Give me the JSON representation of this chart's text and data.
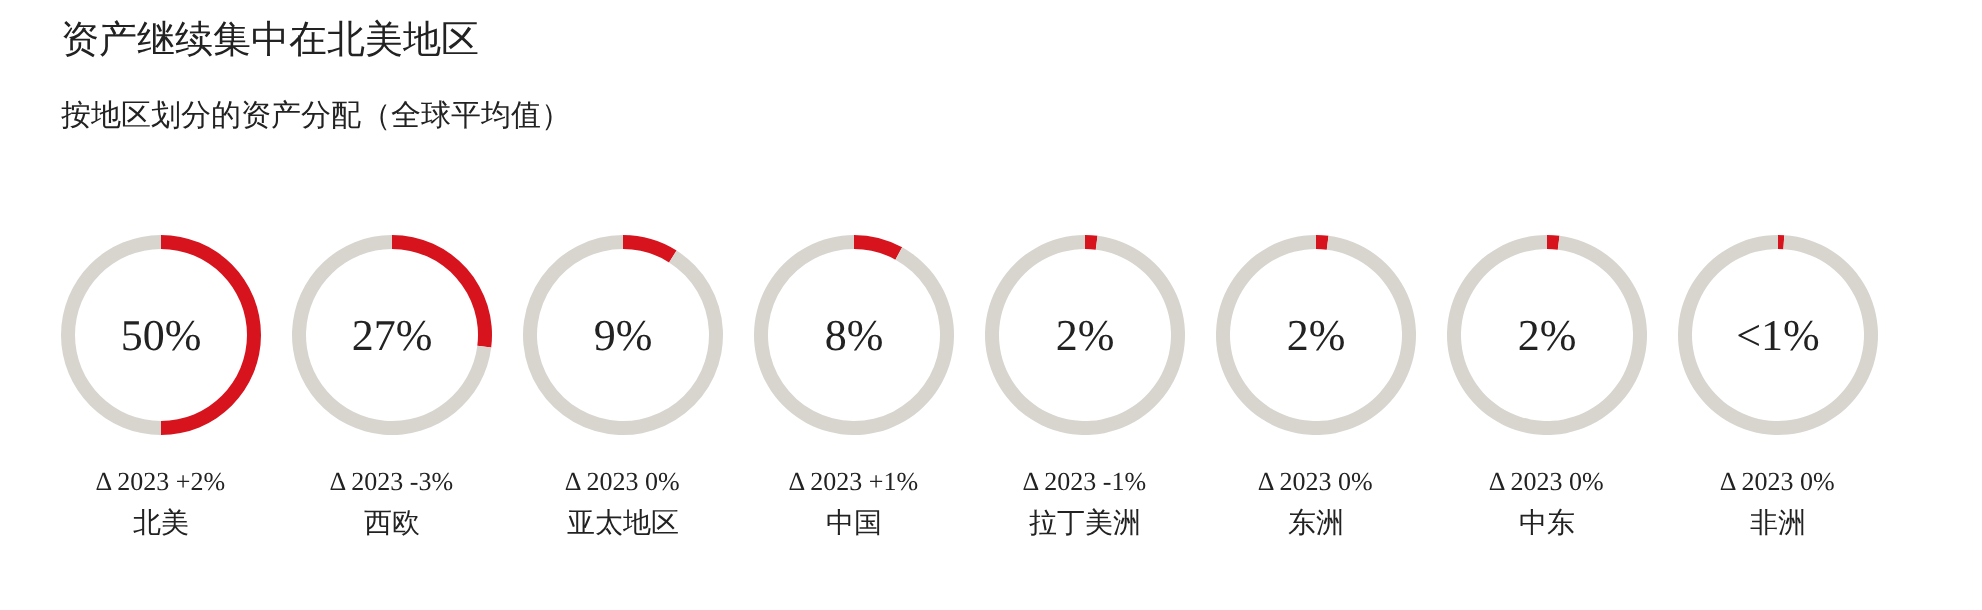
{
  "chart_data": [
    {
      "type": "other",
      "title": "资产继续集中在北美地区",
      "subtitle": "按地区划分的资产分配（全球平均值）"
    },
    {
      "type": "donut",
      "title": "北美",
      "categories": [
        null,
        null
      ],
      "values": [
        50,
        50
      ],
      "colors": [
        "#d7141e",
        "#d8d5cf"
      ],
      "value_labels": [
        "50%",
        null
      ],
      "annotations": [
        "Δ 2023 +2%"
      ]
    },
    {
      "type": "donut",
      "title": "西欧",
      "categories": [
        null,
        null
      ],
      "values": [
        27,
        73
      ],
      "colors": [
        "#d7141e",
        "#d8d5cf"
      ],
      "value_labels": [
        "27%",
        null
      ],
      "annotations": [
        "Δ 2023 -3%"
      ]
    },
    {
      "type": "donut",
      "title": "亚太地区",
      "categories": [
        null,
        null
      ],
      "values": [
        9,
        91
      ],
      "colors": [
        "#d7141e",
        "#d8d5cf"
      ],
      "value_labels": [
        "9%",
        null
      ],
      "annotations": [
        "Δ 2023 0%"
      ]
    },
    {
      "type": "donut",
      "title": "中国",
      "categories": [
        null,
        null
      ],
      "values": [
        8,
        92
      ],
      "colors": [
        "#d7141e",
        "#d8d5cf"
      ],
      "value_labels": [
        "8%",
        null
      ],
      "annotations": [
        "Δ 2023 +1%"
      ]
    },
    {
      "type": "donut",
      "title": "拉丁美洲",
      "categories": [
        null,
        null
      ],
      "values": [
        2,
        98
      ],
      "colors": [
        "#d7141e",
        "#d8d5cf"
      ],
      "value_labels": [
        "2%",
        null
      ],
      "annotations": [
        "Δ 2023 -1%"
      ]
    },
    {
      "type": "donut",
      "title": "东洲",
      "categories": [
        null,
        null
      ],
      "values": [
        2,
        98
      ],
      "colors": [
        "#d7141e",
        "#d8d5cf"
      ],
      "value_labels": [
        "2%",
        null
      ],
      "annotations": [
        "Δ 2023 0%"
      ]
    },
    {
      "type": "donut",
      "title": "中东",
      "categories": [
        null,
        null
      ],
      "values": [
        2,
        98
      ],
      "colors": [
        "#d7141e",
        "#d8d5cf"
      ],
      "value_labels": [
        "2%",
        null
      ],
      "annotations": [
        "Δ 2023 0%"
      ]
    },
    {
      "type": "donut",
      "title": "非洲",
      "categories": [
        null,
        null
      ],
      "values": [
        1,
        99
      ],
      "colors": [
        "#d7141e",
        "#d8d5cf"
      ],
      "value_labels": [
        "<1%",
        null
      ],
      "annotations": [
        "Δ 2023 0%"
      ]
    }
  ]
}
